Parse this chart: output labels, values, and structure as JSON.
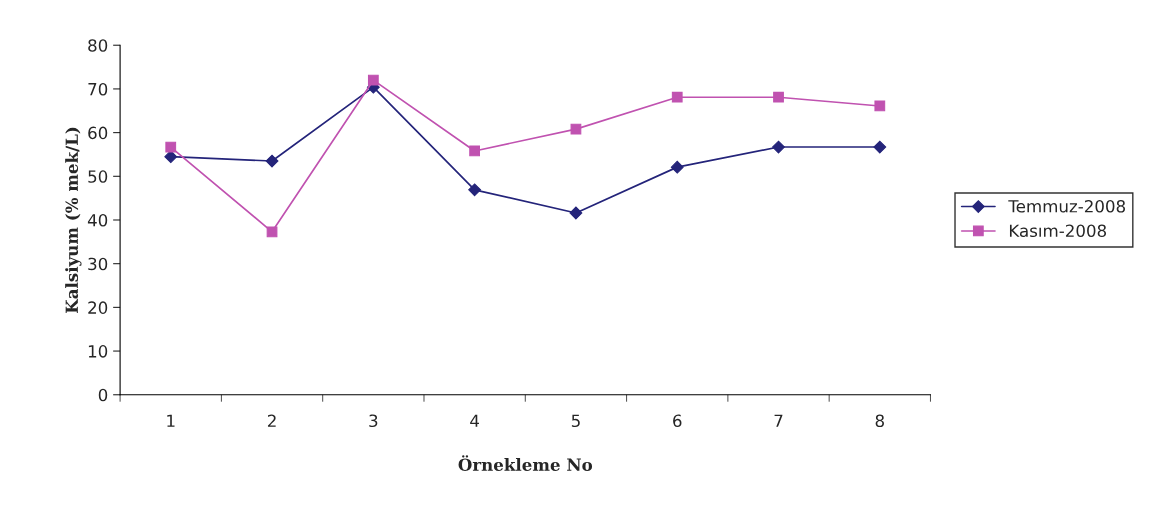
{
  "chart_data": {
    "type": "line",
    "xlabel": "Örnekleme No",
    "ylabel": "Kalsiyum (% mek/L)",
    "categories": [
      "1",
      "2",
      "3",
      "4",
      "5",
      "6",
      "7",
      "8"
    ],
    "ylim": [
      0,
      80
    ],
    "yticks": [
      0,
      10,
      20,
      30,
      40,
      50,
      60,
      70,
      80
    ],
    "grid": false,
    "legend": "right",
    "line_style": "solid",
    "series": [
      {
        "name": "Temmuz-2008",
        "color": "#24247a",
        "marker": "diamond",
        "values": [
          54.5,
          53.5,
          70.4,
          46.9,
          41.6,
          52.1,
          56.7,
          56.7
        ]
      },
      {
        "name": "Kasım-2008",
        "color": "#c052b0",
        "marker": "square",
        "values": [
          56.7,
          37.3,
          72.0,
          55.8,
          60.8,
          68.1,
          68.1,
          66.1
        ]
      }
    ]
  }
}
